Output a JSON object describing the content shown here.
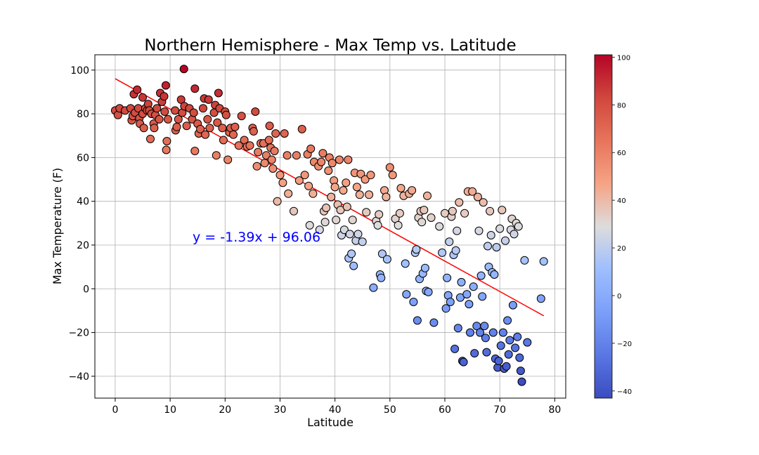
{
  "chart_data": {
    "type": "scatter",
    "title": "Northern Hemisphere - Max Temp vs. Latitude",
    "xlabel": "Latitude",
    "ylabel": "Max Temperature (F)",
    "xlim": [
      -3.7,
      82
    ],
    "ylim": [
      -50,
      107
    ],
    "xticks": [
      0,
      10,
      20,
      30,
      40,
      50,
      60,
      70,
      80
    ],
    "yticks": [
      -40,
      -20,
      0,
      20,
      40,
      60,
      80,
      100
    ],
    "xtick_labels": [
      "0",
      "10",
      "20",
      "30",
      "40",
      "50",
      "60",
      "70",
      "80"
    ],
    "ytick_labels": [
      "−40",
      "−20",
      "0",
      "20",
      "40",
      "60",
      "80",
      "100"
    ],
    "grid": true,
    "colormap": "coolwarm",
    "colorbar": {
      "min": -43,
      "max": 101,
      "ticks": [
        -40,
        -20,
        0,
        20,
        40,
        60,
        80,
        100
      ],
      "tick_labels": [
        "−40",
        "−20",
        "0",
        "20",
        "40",
        "60",
        "80",
        "100"
      ]
    },
    "regression": {
      "slope": -1.39,
      "intercept": 96.06,
      "x_range": [
        0,
        78
      ],
      "color": "#ff0000",
      "equation_label": "y = -1.39x + 96.06"
    },
    "points": [
      [
        0.0,
        81.5
      ],
      [
        0.5,
        79.5
      ],
      [
        0.8,
        82.5
      ],
      [
        1.8,
        81.5
      ],
      [
        2.8,
        82.5
      ],
      [
        3.0,
        77.0
      ],
      [
        3.2,
        79.0
      ],
      [
        3.4,
        89.0
      ],
      [
        3.6,
        80.5
      ],
      [
        4.0,
        91.0
      ],
      [
        4.2,
        82.5
      ],
      [
        4.4,
        78.0
      ],
      [
        4.5,
        75.5
      ],
      [
        5.0,
        87.5
      ],
      [
        5.0,
        80.0
      ],
      [
        5.2,
        73.5
      ],
      [
        5.5,
        82.5
      ],
      [
        5.8,
        81.5
      ],
      [
        6.0,
        84.5
      ],
      [
        6.2,
        81.5
      ],
      [
        6.4,
        68.5
      ],
      [
        6.6,
        80.0
      ],
      [
        7.0,
        75.5
      ],
      [
        7.1,
        73.5
      ],
      [
        7.3,
        79.5
      ],
      [
        7.6,
        82.5
      ],
      [
        8.0,
        77.5
      ],
      [
        8.2,
        89.5
      ],
      [
        8.5,
        85.5
      ],
      [
        8.9,
        88.0
      ],
      [
        9.0,
        81.0
      ],
      [
        9.2,
        93.0
      ],
      [
        9.3,
        63.5
      ],
      [
        9.4,
        67.5
      ],
      [
        9.6,
        77.5
      ],
      [
        10.9,
        81.5
      ],
      [
        11.0,
        72.5
      ],
      [
        11.2,
        74.0
      ],
      [
        11.5,
        77.5
      ],
      [
        12.0,
        86.5
      ],
      [
        12.2,
        80.5
      ],
      [
        12.5,
        100.5
      ],
      [
        12.6,
        83.5
      ],
      [
        13.0,
        74.5
      ],
      [
        13.5,
        82.5
      ],
      [
        14.0,
        77.5
      ],
      [
        14.3,
        80.5
      ],
      [
        14.5,
        91.5
      ],
      [
        14.5,
        63.0
      ],
      [
        15.0,
        75.5
      ],
      [
        15.2,
        71.0
      ],
      [
        15.5,
        73.0
      ],
      [
        16.0,
        82.5
      ],
      [
        16.2,
        87.0
      ],
      [
        16.4,
        70.5
      ],
      [
        16.8,
        77.5
      ],
      [
        17.0,
        86.5
      ],
      [
        17.2,
        73.5
      ],
      [
        18.0,
        80.5
      ],
      [
        18.2,
        84.0
      ],
      [
        18.4,
        61.0
      ],
      [
        18.6,
        76.0
      ],
      [
        18.8,
        89.5
      ],
      [
        19.0,
        82.5
      ],
      [
        19.5,
        73.5
      ],
      [
        19.7,
        68.0
      ],
      [
        20.0,
        81.0
      ],
      [
        20.2,
        79.5
      ],
      [
        20.5,
        59.0
      ],
      [
        20.8,
        71.5
      ],
      [
        21.0,
        73.5
      ],
      [
        21.5,
        70.5
      ],
      [
        21.8,
        74.0
      ],
      [
        22.5,
        65.5
      ],
      [
        23.0,
        79.0
      ],
      [
        23.5,
        68.0
      ],
      [
        24.0,
        65.0
      ],
      [
        24.5,
        65.5
      ],
      [
        25.0,
        73.5
      ],
      [
        25.2,
        72.0
      ],
      [
        25.5,
        81.0
      ],
      [
        25.8,
        56.0
      ],
      [
        26.0,
        62.5
      ],
      [
        26.5,
        66.5
      ],
      [
        27.0,
        66.5
      ],
      [
        27.2,
        57.5
      ],
      [
        27.5,
        61.0
      ],
      [
        28.0,
        68.0
      ],
      [
        28.1,
        74.5
      ],
      [
        28.3,
        64.5
      ],
      [
        28.5,
        59.0
      ],
      [
        28.7,
        55.0
      ],
      [
        29.0,
        63.0
      ],
      [
        29.2,
        71.0
      ],
      [
        29.5,
        40.0
      ],
      [
        30.0,
        52.0
      ],
      [
        30.5,
        48.5
      ],
      [
        30.8,
        71.0
      ],
      [
        31.3,
        61.0
      ],
      [
        31.5,
        43.5
      ],
      [
        32.5,
        35.5
      ],
      [
        33.0,
        61.0
      ],
      [
        33.5,
        49.5
      ],
      [
        34.0,
        73.0
      ],
      [
        34.5,
        52.0
      ],
      [
        35.0,
        61.5
      ],
      [
        35.2,
        47.0
      ],
      [
        35.4,
        29.0
      ],
      [
        35.6,
        64.0
      ],
      [
        36.0,
        43.5
      ],
      [
        36.2,
        58.0
      ],
      [
        37.0,
        56.0
      ],
      [
        37.2,
        27.0
      ],
      [
        37.5,
        58.0
      ],
      [
        37.8,
        62.0
      ],
      [
        38.0,
        35.5
      ],
      [
        38.2,
        30.5
      ],
      [
        38.4,
        37.0
      ],
      [
        38.8,
        54.0
      ],
      [
        39.0,
        60.0
      ],
      [
        39.3,
        42.0
      ],
      [
        39.5,
        57.5
      ],
      [
        39.8,
        49.5
      ],
      [
        40.0,
        46.5
      ],
      [
        40.2,
        31.5
      ],
      [
        40.5,
        38.5
      ],
      [
        40.8,
        59.0
      ],
      [
        41.0,
        36.0
      ],
      [
        41.2,
        24.5
      ],
      [
        41.5,
        45.0
      ],
      [
        41.7,
        27.0
      ],
      [
        42.0,
        48.5
      ],
      [
        42.2,
        37.5
      ],
      [
        42.4,
        59.0
      ],
      [
        42.5,
        14.0
      ],
      [
        42.7,
        25.0
      ],
      [
        43.0,
        16.0
      ],
      [
        43.2,
        31.5
      ],
      [
        43.4,
        10.5
      ],
      [
        43.6,
        53.0
      ],
      [
        43.8,
        22.0
      ],
      [
        44.0,
        46.5
      ],
      [
        44.2,
        25.0
      ],
      [
        44.5,
        43.0
      ],
      [
        44.7,
        52.5
      ],
      [
        45.0,
        21.5
      ],
      [
        45.5,
        50.0
      ],
      [
        45.7,
        35.0
      ],
      [
        46.2,
        43.0
      ],
      [
        46.5,
        52.0
      ],
      [
        47.0,
        0.5
      ],
      [
        47.5,
        31.0
      ],
      [
        47.8,
        29.0
      ],
      [
        48.0,
        34.0
      ],
      [
        48.2,
        6.5
      ],
      [
        48.4,
        5.0
      ],
      [
        48.6,
        16.0
      ],
      [
        49.0,
        45.0
      ],
      [
        49.3,
        42.0
      ],
      [
        49.5,
        13.5
      ],
      [
        50.0,
        55.5
      ],
      [
        50.5,
        52.0
      ],
      [
        51.0,
        32.0
      ],
      [
        51.5,
        29.0
      ],
      [
        51.8,
        34.5
      ],
      [
        52.0,
        46.0
      ],
      [
        52.5,
        42.5
      ],
      [
        52.8,
        11.5
      ],
      [
        53.0,
        -2.5
      ],
      [
        53.5,
        43.5
      ],
      [
        54.0,
        45.0
      ],
      [
        54.3,
        -6.0
      ],
      [
        54.6,
        16.5
      ],
      [
        54.8,
        18.0
      ],
      [
        55.0,
        -14.5
      ],
      [
        55.2,
        32.5
      ],
      [
        55.4,
        4.5
      ],
      [
        55.6,
        35.5
      ],
      [
        55.8,
        30.5
      ],
      [
        56.0,
        7.0
      ],
      [
        56.2,
        36.0
      ],
      [
        56.4,
        9.5
      ],
      [
        56.6,
        -1.0
      ],
      [
        56.8,
        42.5
      ],
      [
        57.0,
        -1.5
      ],
      [
        57.5,
        32.5
      ],
      [
        58.0,
        -15.5
      ],
      [
        59.0,
        28.5
      ],
      [
        59.5,
        16.5
      ],
      [
        60.0,
        34.5
      ],
      [
        60.2,
        -9.0
      ],
      [
        60.4,
        5.0
      ],
      [
        60.6,
        -3.0
      ],
      [
        60.8,
        21.5
      ],
      [
        61.0,
        -6.0
      ],
      [
        61.2,
        33.0
      ],
      [
        61.4,
        35.5
      ],
      [
        61.6,
        15.5
      ],
      [
        61.8,
        -27.5
      ],
      [
        62.0,
        17.5
      ],
      [
        62.2,
        26.5
      ],
      [
        62.4,
        -18.0
      ],
      [
        62.6,
        39.5
      ],
      [
        62.8,
        -4.0
      ],
      [
        63.0,
        3.0
      ],
      [
        63.2,
        -33.0
      ],
      [
        63.4,
        -33.5
      ],
      [
        63.6,
        34.5
      ],
      [
        64.0,
        -2.5
      ],
      [
        64.2,
        44.5
      ],
      [
        64.4,
        -7.0
      ],
      [
        64.6,
        -20.0
      ],
      [
        65.0,
        44.5
      ],
      [
        65.2,
        1.0
      ],
      [
        65.4,
        -29.5
      ],
      [
        65.8,
        -17.0
      ],
      [
        66.0,
        42.0
      ],
      [
        66.2,
        26.5
      ],
      [
        66.4,
        -20.0
      ],
      [
        66.6,
        6.0
      ],
      [
        66.8,
        -3.5
      ],
      [
        67.0,
        39.5
      ],
      [
        67.2,
        -17.0
      ],
      [
        67.4,
        -22.5
      ],
      [
        67.6,
        -29.0
      ],
      [
        67.8,
        19.5
      ],
      [
        68.0,
        10.0
      ],
      [
        68.2,
        35.5
      ],
      [
        68.4,
        24.5
      ],
      [
        68.6,
        7.5
      ],
      [
        68.8,
        -20.0
      ],
      [
        69.0,
        6.5
      ],
      [
        69.2,
        -32.0
      ],
      [
        69.4,
        19.0
      ],
      [
        69.6,
        -36.0
      ],
      [
        69.8,
        -33.0
      ],
      [
        70.0,
        27.5
      ],
      [
        70.2,
        -26.0
      ],
      [
        70.4,
        36.0
      ],
      [
        70.6,
        -20.0
      ],
      [
        70.8,
        -36.5
      ],
      [
        71.0,
        22.0
      ],
      [
        71.2,
        -35.5
      ],
      [
        71.4,
        -14.5
      ],
      [
        71.6,
        -30.0
      ],
      [
        71.8,
        -23.5
      ],
      [
        72.0,
        27.0
      ],
      [
        72.2,
        32.0
      ],
      [
        72.4,
        -7.5
      ],
      [
        72.6,
        25.0
      ],
      [
        72.8,
        -27.0
      ],
      [
        73.0,
        30.0
      ],
      [
        73.2,
        -22.0
      ],
      [
        73.4,
        28.5
      ],
      [
        73.6,
        -31.5
      ],
      [
        73.8,
        -37.5
      ],
      [
        74.0,
        -42.5
      ],
      [
        74.5,
        13.0
      ],
      [
        75.0,
        -24.5
      ],
      [
        77.5,
        -4.5
      ],
      [
        78.0,
        12.5
      ]
    ]
  }
}
